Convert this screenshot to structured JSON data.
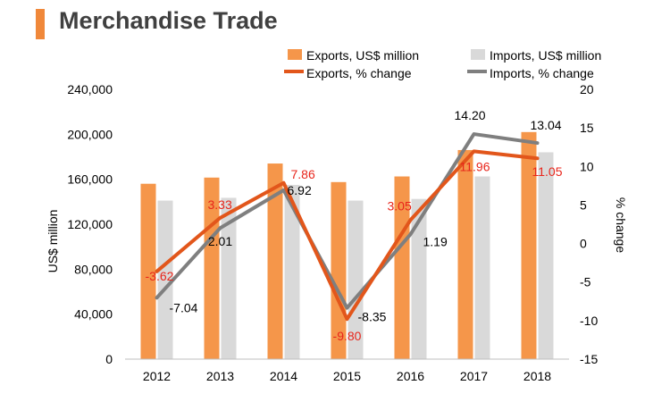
{
  "page_title": "Merchandise Trade",
  "colors": {
    "accent_bar": "#f0883a",
    "exports_bar": "#f5964a",
    "imports_bar": "#d9d9d9",
    "exports_line": "#e2561b",
    "imports_line": "#7f7f7f",
    "exports_label": "#e8251b",
    "imports_label": "#000000",
    "text": "#000000"
  },
  "chart_data": {
    "type": "bar",
    "title": "Merchandise Trade",
    "categories": [
      "2012",
      "2013",
      "2014",
      "2015",
      "2016",
      "2017",
      "2018"
    ],
    "ylabel": "US$ million",
    "y2label": "% change",
    "ylim": [
      0,
      240000
    ],
    "y2lim": [
      -15,
      20
    ],
    "y_ticks": [
      "0",
      "40,000",
      "80,000",
      "120,000",
      "160,000",
      "200,000",
      "240,000"
    ],
    "y2_ticks": [
      "-15",
      "-10",
      "-5",
      "0",
      "5",
      "10",
      "15",
      "20"
    ],
    "grid": false,
    "legend_position": "top",
    "series": [
      {
        "name": "Exports, US$ million",
        "type": "bar",
        "axis": "left",
        "values": [
          156000,
          161500,
          174000,
          157500,
          162500,
          186000,
          202000
        ]
      },
      {
        "name": "Imports, US$ million",
        "type": "bar",
        "axis": "left",
        "values": [
          141000,
          143500,
          155000,
          141000,
          142500,
          162500,
          184000
        ]
      },
      {
        "name": "Exports, % change",
        "type": "line",
        "axis": "right",
        "values": [
          -3.62,
          3.33,
          7.86,
          -9.8,
          3.05,
          11.96,
          11.05
        ],
        "labels": [
          "-3.62",
          "3.33",
          "7.86",
          "-9.80",
          "3.05",
          "11.96",
          "11.05"
        ]
      },
      {
        "name": "Imports, % change",
        "type": "line",
        "axis": "right",
        "values": [
          -7.04,
          2.01,
          6.92,
          -8.35,
          1.19,
          14.2,
          13.04
        ],
        "labels": [
          "-7.04",
          "2.01",
          "6.92",
          "-8.35",
          "1.19",
          "14.20",
          "13.04"
        ]
      }
    ]
  }
}
